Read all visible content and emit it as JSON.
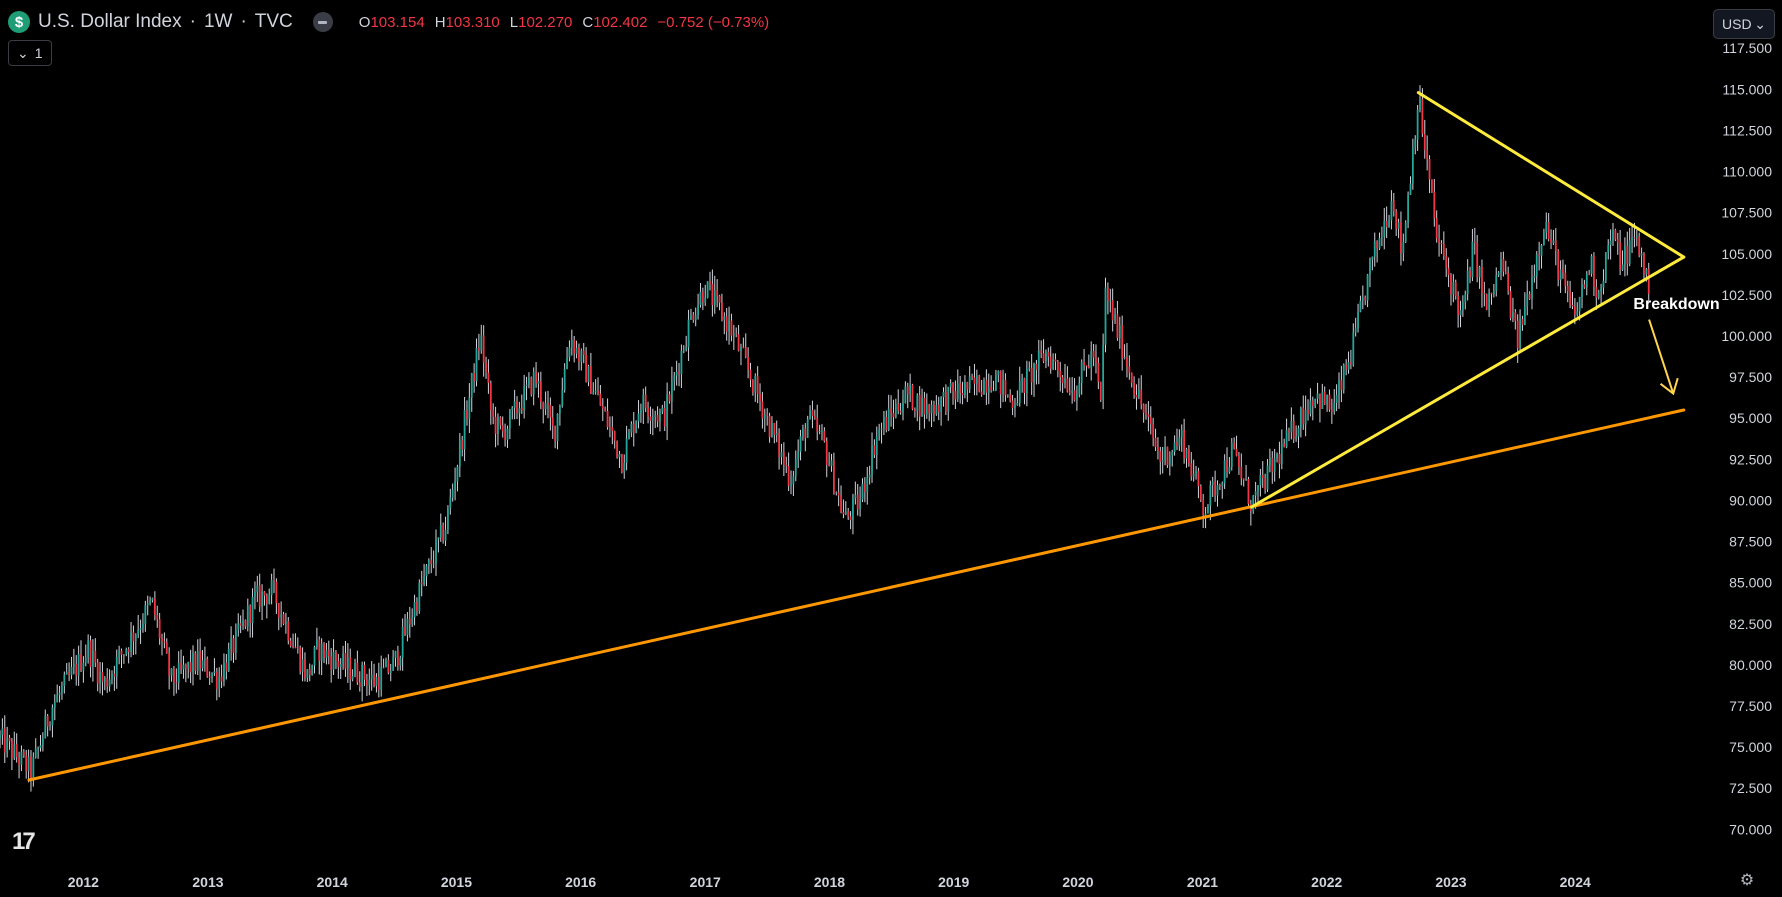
{
  "header": {
    "icon": "dollar-sign-icon",
    "icon_text": "$",
    "symbol": "U.S. Dollar Index",
    "interval": "1W",
    "source": "TVC",
    "ohlc": [
      {
        "label": "O",
        "value": "103.154"
      },
      {
        "label": "H",
        "value": "103.310"
      },
      {
        "label": "L",
        "value": "102.270"
      },
      {
        "label": "C",
        "value": "102.402"
      }
    ],
    "change": "−0.752 (−0.73%)"
  },
  "legend_toggle": {
    "icon": "chevron-down-icon",
    "count": "1"
  },
  "currency": {
    "label": "USD",
    "icon": "chevron-down-icon"
  },
  "colors": {
    "background": "#000000",
    "up_candle": "#26a69a",
    "down_candle": "#f23645",
    "wick": "#d1d4dc",
    "triangle_line": "#ffeb3b",
    "support_line": "#ff9800",
    "axis_text": "#d1d4dc",
    "change_text": "#f23645"
  },
  "chart_data": {
    "type": "candlestick",
    "x_axis": {
      "type": "date",
      "range": [
        "2011-05-01",
        "2024-12-15"
      ],
      "tick_labels": [
        "2012",
        "2013",
        "2014",
        "2015",
        "2016",
        "2017",
        "2018",
        "2019",
        "2020",
        "2021",
        "2022",
        "2023",
        "2024"
      ]
    },
    "y_axis": {
      "position": "right",
      "range": [
        68.5,
        118.0
      ],
      "tick_labels": [
        "117.500",
        "115.000",
        "112.500",
        "110.000",
        "107.500",
        "105.000",
        "102.500",
        "100.000",
        "97.500",
        "95.000",
        "92.500",
        "90.000",
        "87.500",
        "85.000",
        "82.500",
        "80.000",
        "77.500",
        "75.000",
        "72.500",
        "70.000"
      ]
    },
    "grid": false,
    "price_anchors": [
      {
        "date": "2011-05-01",
        "value": 75.5
      },
      {
        "date": "2011-08-01",
        "value": 73.5
      },
      {
        "date": "2011-10-01",
        "value": 77.5
      },
      {
        "date": "2012-01-15",
        "value": 81.0
      },
      {
        "date": "2012-03-01",
        "value": 78.8
      },
      {
        "date": "2012-07-20",
        "value": 83.8
      },
      {
        "date": "2012-09-15",
        "value": 79.0
      },
      {
        "date": "2012-12-01",
        "value": 80.2
      },
      {
        "date": "2013-02-01",
        "value": 79.2
      },
      {
        "date": "2013-05-20",
        "value": 84.0
      },
      {
        "date": "2013-07-10",
        "value": 84.5
      },
      {
        "date": "2013-10-20",
        "value": 79.3
      },
      {
        "date": "2013-11-20",
        "value": 81.0
      },
      {
        "date": "2014-02-15",
        "value": 79.8
      },
      {
        "date": "2014-05-05",
        "value": 79.0
      },
      {
        "date": "2014-07-01",
        "value": 80.0
      },
      {
        "date": "2014-09-15",
        "value": 84.5
      },
      {
        "date": "2014-12-01",
        "value": 88.5
      },
      {
        "date": "2015-03-13",
        "value": 100.0
      },
      {
        "date": "2015-04-15",
        "value": 95.0
      },
      {
        "date": "2015-05-15",
        "value": 94.0
      },
      {
        "date": "2015-08-20",
        "value": 97.5
      },
      {
        "date": "2015-10-15",
        "value": 94.0
      },
      {
        "date": "2015-12-01",
        "value": 100.0
      },
      {
        "date": "2016-02-15",
        "value": 96.5
      },
      {
        "date": "2016-05-01",
        "value": 92.5
      },
      {
        "date": "2016-06-25",
        "value": 96.0
      },
      {
        "date": "2016-09-01",
        "value": 95.0
      },
      {
        "date": "2016-11-25",
        "value": 101.5
      },
      {
        "date": "2017-01-01",
        "value": 103.0
      },
      {
        "date": "2017-03-15",
        "value": 100.5
      },
      {
        "date": "2017-05-15",
        "value": 97.5
      },
      {
        "date": "2017-09-08",
        "value": 91.3
      },
      {
        "date": "2017-10-30",
        "value": 95.0
      },
      {
        "date": "2017-12-15",
        "value": 93.5
      },
      {
        "date": "2018-02-15",
        "value": 88.8
      },
      {
        "date": "2018-04-01",
        "value": 90.0
      },
      {
        "date": "2018-05-20",
        "value": 94.0
      },
      {
        "date": "2018-08-15",
        "value": 96.5
      },
      {
        "date": "2018-10-15",
        "value": 95.5
      },
      {
        "date": "2019-01-01",
        "value": 96.5
      },
      {
        "date": "2019-05-01",
        "value": 97.5
      },
      {
        "date": "2019-06-20",
        "value": 96.0
      },
      {
        "date": "2019-09-30",
        "value": 99.0
      },
      {
        "date": "2019-12-20",
        "value": 96.7
      },
      {
        "date": "2020-02-15",
        "value": 99.0
      },
      {
        "date": "2020-03-10",
        "value": 95.5
      },
      {
        "date": "2020-03-20",
        "value": 102.8
      },
      {
        "date": "2020-05-01",
        "value": 100.0
      },
      {
        "date": "2020-06-15",
        "value": 97.0
      },
      {
        "date": "2020-08-30",
        "value": 92.5
      },
      {
        "date": "2020-11-01",
        "value": 93.8
      },
      {
        "date": "2021-01-06",
        "value": 89.5
      },
      {
        "date": "2021-03-30",
        "value": 93.0
      },
      {
        "date": "2021-05-25",
        "value": 89.8
      },
      {
        "date": "2021-08-20",
        "value": 93.0
      },
      {
        "date": "2021-11-25",
        "value": 96.5
      },
      {
        "date": "2022-01-20",
        "value": 95.5
      },
      {
        "date": "2022-03-15",
        "value": 99.0
      },
      {
        "date": "2022-05-13",
        "value": 104.5
      },
      {
        "date": "2022-07-14",
        "value": 108.5
      },
      {
        "date": "2022-08-10",
        "value": 105.0
      },
      {
        "date": "2022-09-27",
        "value": 114.5
      },
      {
        "date": "2022-11-20",
        "value": 106.0
      },
      {
        "date": "2023-01-20",
        "value": 102.0
      },
      {
        "date": "2023-02-01",
        "value": 101.0
      },
      {
        "date": "2023-03-08",
        "value": 105.5
      },
      {
        "date": "2023-04-15",
        "value": 101.5
      },
      {
        "date": "2023-05-31",
        "value": 104.5
      },
      {
        "date": "2023-07-14",
        "value": 99.6
      },
      {
        "date": "2023-10-03",
        "value": 107.0
      },
      {
        "date": "2023-12-28",
        "value": 101.0
      },
      {
        "date": "2024-02-15",
        "value": 104.5
      },
      {
        "date": "2024-03-08",
        "value": 102.5
      },
      {
        "date": "2024-04-16",
        "value": 106.2
      },
      {
        "date": "2024-05-15",
        "value": 104.5
      },
      {
        "date": "2024-06-26",
        "value": 106.0
      },
      {
        "date": "2024-07-25",
        "value": 104.0
      },
      {
        "date": "2024-08-09",
        "value": 102.4
      }
    ],
    "drawings": [
      {
        "type": "trend_line",
        "name": "long-term support",
        "color": "#ff9800",
        "points": [
          {
            "date": "2011-07-25",
            "value": 73.0
          },
          {
            "date": "2024-11-15",
            "value": 95.5
          }
        ]
      },
      {
        "type": "trend_line",
        "name": "triangle upper",
        "color": "#ffeb3b",
        "points": [
          {
            "date": "2022-09-27",
            "value": 114.8
          },
          {
            "date": "2024-11-15",
            "value": 104.8
          }
        ]
      },
      {
        "type": "trend_line",
        "name": "triangle lower",
        "color": "#ffeb3b",
        "points": [
          {
            "date": "2021-05-25",
            "value": 89.6
          },
          {
            "date": "2024-11-15",
            "value": 104.8
          }
        ]
      },
      {
        "type": "arrow",
        "color": "#ffd54f",
        "points": [
          {
            "date": "2024-08-05",
            "value": 101.0
          },
          {
            "date": "2024-10-15",
            "value": 96.5
          }
        ]
      }
    ],
    "annotations": [
      {
        "text": "Breakdown",
        "date": "2024-06-20",
        "value": 102.0
      }
    ]
  },
  "footer": {
    "tv_logo": "17",
    "settings_icon": "gear-icon",
    "settings_glyph": "⚙"
  }
}
